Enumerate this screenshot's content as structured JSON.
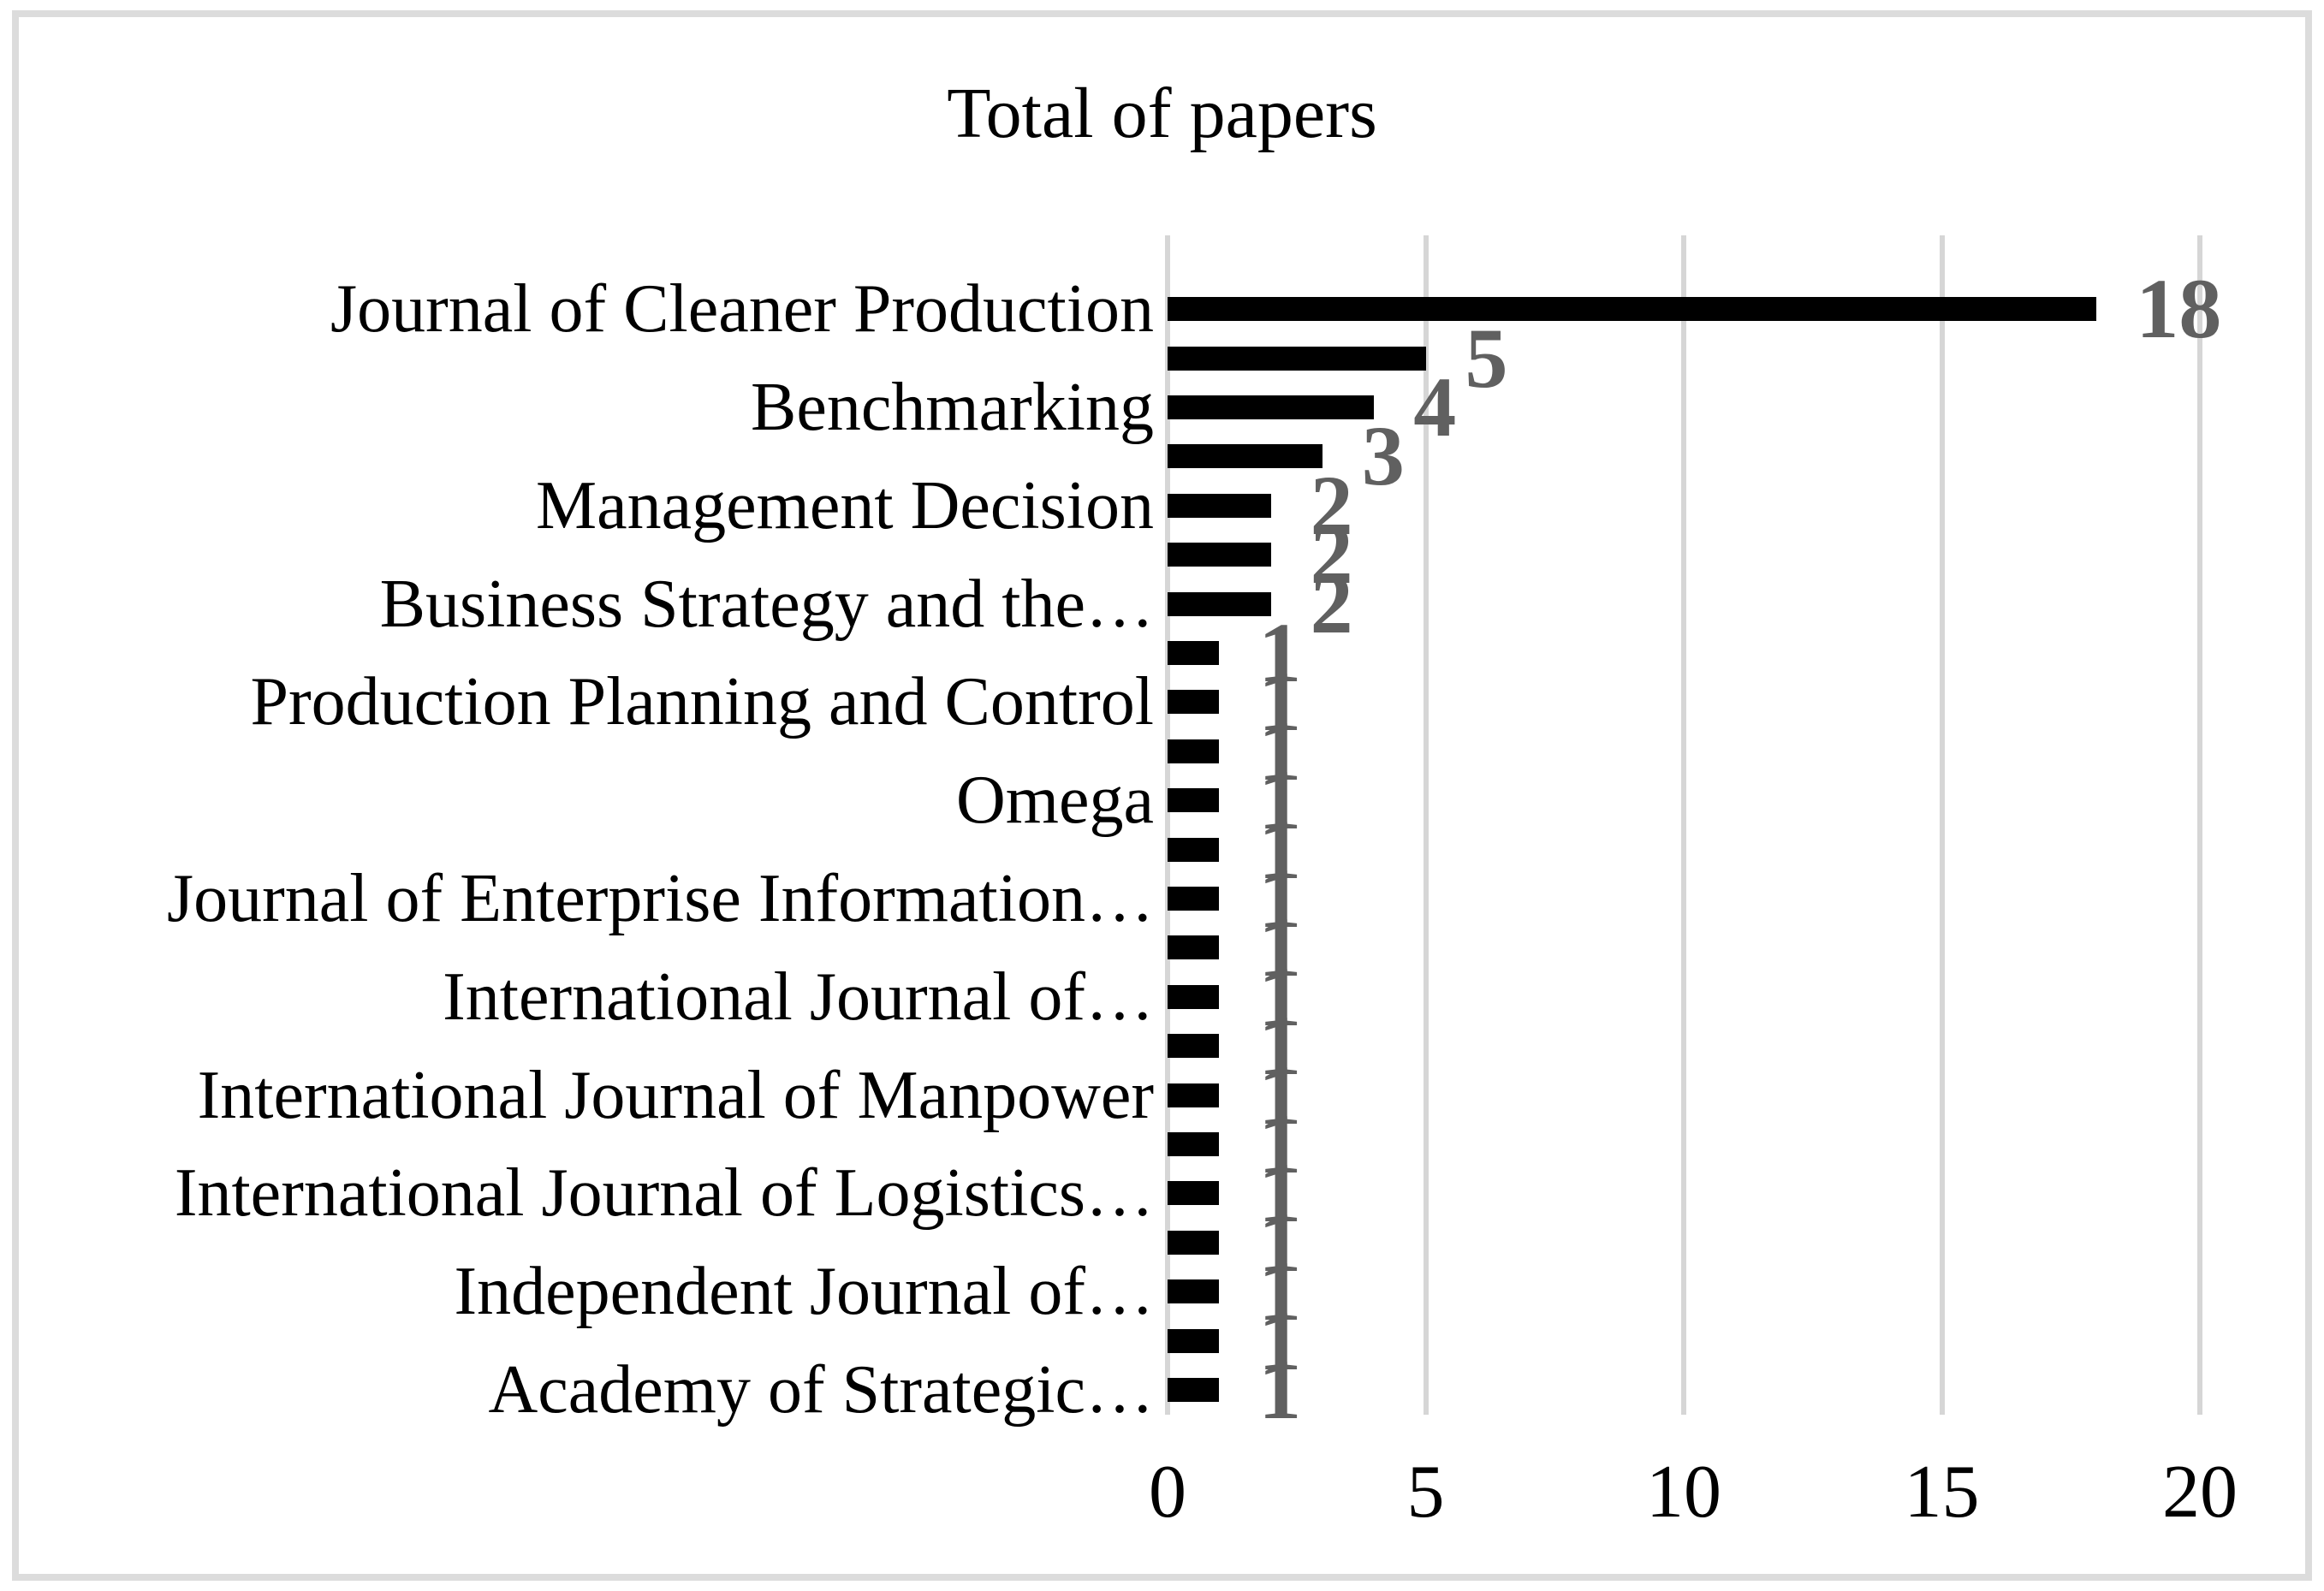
{
  "title": "Total of papers",
  "chart_data": {
    "type": "bar",
    "orientation": "horizontal",
    "title": "Total of papers",
    "categories": [
      "Journal of Cleaner Production",
      "",
      "Benchmarking",
      "",
      "Management Decision",
      "",
      "Business Strategy and the…",
      "",
      "Production Planning and Control",
      "",
      "Omega",
      "",
      "Journal of Enterprise Information…",
      "",
      "International Journal of…",
      "",
      "International Journal of Manpower",
      "",
      "International Journal of Logistics…",
      "",
      "Independent Journal of…",
      "",
      "Academy of Strategic…"
    ],
    "values": [
      18,
      5,
      4,
      3,
      2,
      2,
      2,
      1,
      1,
      1,
      1,
      1,
      1,
      1,
      1,
      1,
      1,
      1,
      1,
      1,
      1,
      1,
      1
    ],
    "data_labels": [
      18,
      5,
      4,
      3,
      2,
      2,
      2,
      1,
      1,
      1,
      1,
      1,
      1,
      1,
      1,
      1,
      1,
      1,
      1,
      1,
      1,
      1,
      1
    ],
    "xlabel": "",
    "ylabel": "",
    "xlim": [
      0,
      20
    ],
    "x_ticks": [
      0,
      5,
      10,
      15,
      20
    ],
    "grid": true,
    "legend": false
  },
  "colors": {
    "bar": "#000000",
    "data_label": "#606060",
    "gridline": "#d6d6d6",
    "frame_border": "#dcdcdc",
    "text": "#000000",
    "background": "#ffffff"
  }
}
